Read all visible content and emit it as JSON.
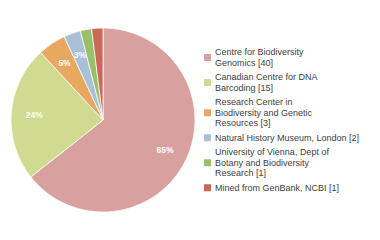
{
  "chart_data": {
    "type": "pie",
    "labels": [
      "Centre for Biodiversity\nGenomics [40]",
      "Canadian Centre for DNA\nBarcoding [15]",
      "Research Center in\nBiodiversity and Genetic\nResources [3]",
      "Natural History Museum, London [2]",
      "University of Vienna, Dept of\nBotany and Biodiversity\nResearch [1]",
      "Mined from GenBank, NCBI [1]"
    ],
    "values": [
      65,
      24,
      5,
      3,
      2,
      2
    ],
    "value_labels": [
      "65%",
      "24%",
      "5%",
      "3%",
      null,
      null
    ],
    "data_labels": true,
    "colors": [
      "#d9a0a0",
      "#d0da90",
      "#e8a860",
      "#a8c0d8",
      "#98c068",
      "#c86858"
    ],
    "legend": "right"
  }
}
